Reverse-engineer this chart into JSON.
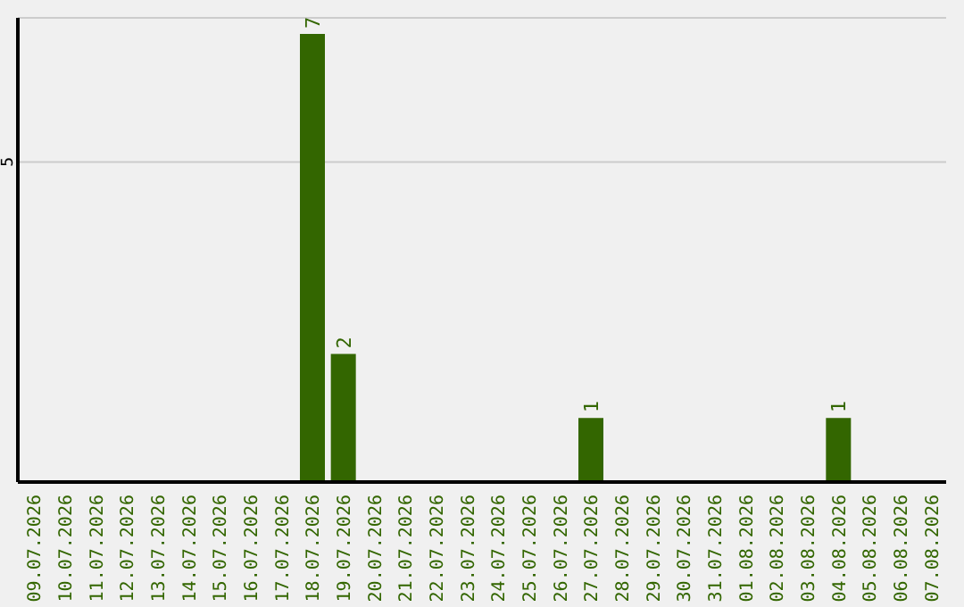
{
  "chart_data": {
    "type": "bar",
    "categories": [
      "09.07.2026",
      "10.07.2026",
      "11.07.2026",
      "12.07.2026",
      "13.07.2026",
      "14.07.2026",
      "15.07.2026",
      "16.07.2026",
      "17.07.2026",
      "18.07.2026",
      "19.07.2026",
      "20.07.2026",
      "21.07.2026",
      "22.07.2026",
      "23.07.2026",
      "24.07.2026",
      "25.07.2026",
      "26.07.2026",
      "27.07.2026",
      "28.07.2026",
      "29.07.2026",
      "30.07.2026",
      "31.07.2026",
      "01.08.2026",
      "02.08.2026",
      "03.08.2026",
      "04.08.2026",
      "05.08.2026",
      "06.08.2026",
      "07.08.2026"
    ],
    "values": [
      0,
      0,
      0,
      0,
      0,
      0,
      0,
      0,
      0,
      7,
      2,
      0,
      0,
      0,
      0,
      0,
      0,
      0,
      1,
      0,
      0,
      0,
      0,
      0,
      0,
      0,
      1,
      0,
      0,
      0
    ],
    "value_labels": [
      null,
      null,
      null,
      null,
      null,
      null,
      null,
      null,
      null,
      "7",
      "2",
      null,
      null,
      null,
      null,
      null,
      null,
      null,
      "1",
      null,
      null,
      null,
      null,
      null,
      null,
      null,
      "1",
      null,
      null,
      null
    ],
    "color": "#336600",
    "ylim": [
      0,
      7.25
    ],
    "yticks": [
      5
    ],
    "grid": "y"
  }
}
